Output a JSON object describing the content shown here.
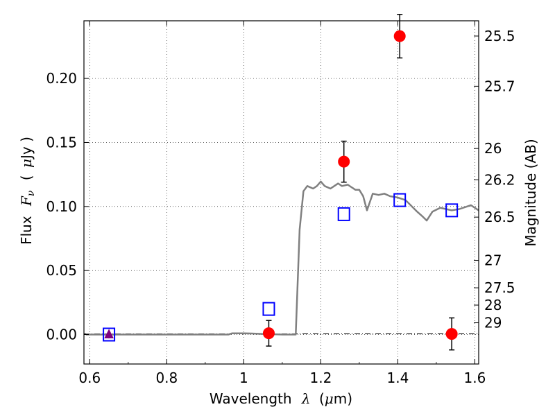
{
  "chart_data": {
    "type": "scatter",
    "title": "",
    "xlabel": "Wavelength",
    "xlabel_symbol": "λ",
    "xlabel_unit_open": "(",
    "xlabel_unit_mu": "μ",
    "xlabel_unit_rest": "m)",
    "ylabel_prefix": "Flux",
    "ylabel_symbol": "F",
    "ylabel_subscript": "ν",
    "ylabel_unit_open": "(",
    "ylabel_unit_mu": "μ",
    "ylabel_unit_rest": "Jy )",
    "y2label": "Magnitude (AB)",
    "xlim": [
      0.585,
      1.61
    ],
    "ylim": [
      -0.023,
      0.245
    ],
    "grid": true,
    "x_ticks": [
      {
        "value": 0.6,
        "label": "0.6"
      },
      {
        "value": 0.8,
        "label": "0.8"
      },
      {
        "value": 1.0,
        "label": "1"
      },
      {
        "value": 1.2,
        "label": "1.2"
      },
      {
        "value": 1.4,
        "label": "1.4"
      },
      {
        "value": 1.6,
        "label": "1.6"
      }
    ],
    "y_ticks": [
      {
        "value": 0.0,
        "label": "0.00"
      },
      {
        "value": 0.05,
        "label": "0.05"
      },
      {
        "value": 0.1,
        "label": "0.10"
      },
      {
        "value": 0.15,
        "label": "0.15"
      },
      {
        "value": 0.2,
        "label": "0.20"
      }
    ],
    "y2_ticks": [
      {
        "flux": 0.2331,
        "label": "25.5"
      },
      {
        "flux": 0.1939,
        "label": "25.7"
      },
      {
        "flux": 0.1453,
        "label": "26"
      },
      {
        "flux": 0.1208,
        "label": "26.2"
      },
      {
        "flux": 0.0917,
        "label": "26.5"
      },
      {
        "flux": 0.0579,
        "label": "27"
      },
      {
        "flux": 0.0365,
        "label": "27.5"
      },
      {
        "flux": 0.023,
        "label": "28"
      },
      {
        "flux": 0.0092,
        "label": "29"
      }
    ],
    "model_spectrum": {
      "color": "#808080",
      "x": [
        0.59,
        0.65,
        0.8,
        0.96,
        0.97,
        1.0,
        1.02,
        1.06,
        1.1,
        1.135,
        1.145,
        1.155,
        1.165,
        1.18,
        1.19,
        1.2,
        1.21,
        1.225,
        1.235,
        1.245,
        1.255,
        1.27,
        1.28,
        1.29,
        1.3,
        1.31,
        1.32,
        1.335,
        1.35,
        1.365,
        1.38,
        1.4,
        1.42,
        1.43,
        1.45,
        1.465,
        1.475,
        1.49,
        1.51,
        1.525,
        1.54,
        1.56,
        1.58,
        1.59,
        1.61
      ],
      "y": [
        0.0,
        0.0,
        0.0,
        0.0,
        0.001,
        0.001,
        0.0008,
        0.0004,
        0.0,
        0.0,
        0.082,
        0.112,
        0.116,
        0.114,
        0.116,
        0.1195,
        0.116,
        0.114,
        0.116,
        0.118,
        0.116,
        0.117,
        0.115,
        0.113,
        0.113,
        0.108,
        0.097,
        0.11,
        0.109,
        0.11,
        0.108,
        0.107,
        0.105,
        0.102,
        0.096,
        0.092,
        0.089,
        0.096,
        0.099,
        0.098,
        0.097,
        0.098,
        0.1,
        0.101,
        0.097
      ]
    },
    "observed": {
      "color": "#ff0000",
      "points": [
        {
          "x": 1.065,
          "y": 0.001,
          "err": 0.01
        },
        {
          "x": 1.26,
          "y": 0.135,
          "err": 0.016
        },
        {
          "x": 1.405,
          "y": 0.233,
          "err": 0.017
        },
        {
          "x": 1.54,
          "y": 0.0005,
          "err": 0.0125
        }
      ]
    },
    "upper_limit": {
      "color": "#800080",
      "x": 0.65,
      "y": 0.0,
      "err": 0.003
    },
    "model_photometry": {
      "color": "#0000ff",
      "points": [
        {
          "x": 0.65,
          "y": 0.0
        },
        {
          "x": 1.065,
          "y": 0.02
        },
        {
          "x": 1.26,
          "y": 0.094
        },
        {
          "x": 1.405,
          "y": 0.105
        },
        {
          "x": 1.54,
          "y": 0.097
        }
      ]
    }
  }
}
